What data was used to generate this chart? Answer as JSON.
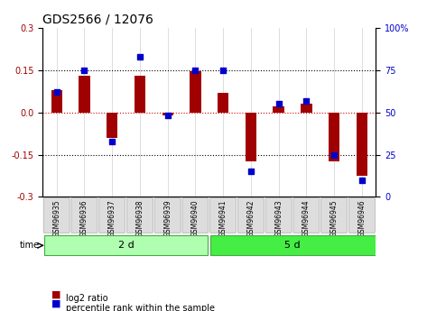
{
  "title": "GDS2566 / 12076",
  "samples": [
    "GSM96935",
    "GSM96936",
    "GSM96937",
    "GSM96938",
    "GSM96939",
    "GSM96940",
    "GSM96941",
    "GSM96942",
    "GSM96943",
    "GSM96944",
    "GSM96945",
    "GSM96946"
  ],
  "log2_ratio": [
    0.08,
    0.13,
    -0.09,
    0.13,
    -0.01,
    0.145,
    0.07,
    -0.175,
    0.02,
    0.03,
    -0.175,
    -0.225
  ],
  "pct_rank": [
    62,
    75,
    33,
    83,
    48,
    75,
    75,
    15,
    55,
    57,
    25,
    10
  ],
  "group1_label": "2 d",
  "group2_label": "5 d",
  "group1_count": 6,
  "group2_count": 6,
  "ylim": [
    -0.3,
    0.3
  ],
  "yticks_left": [
    -0.3,
    -0.15,
    0.0,
    0.15,
    0.3
  ],
  "yticks_right": [
    0,
    25,
    50,
    75,
    100
  ],
  "bar_color": "#a00000",
  "dot_color": "#0000cc",
  "group1_color": "#b0ffb0",
  "group2_color": "#44ee44",
  "xgrid_color": "#d0d0d0",
  "dotted_line_color": "#000000",
  "zero_line_color": "#cc0000",
  "bar_width": 0.4,
  "dot_size": 25,
  "legend_red_label": "log2 ratio",
  "legend_blue_label": "percentile rank within the sample",
  "time_label": "time"
}
